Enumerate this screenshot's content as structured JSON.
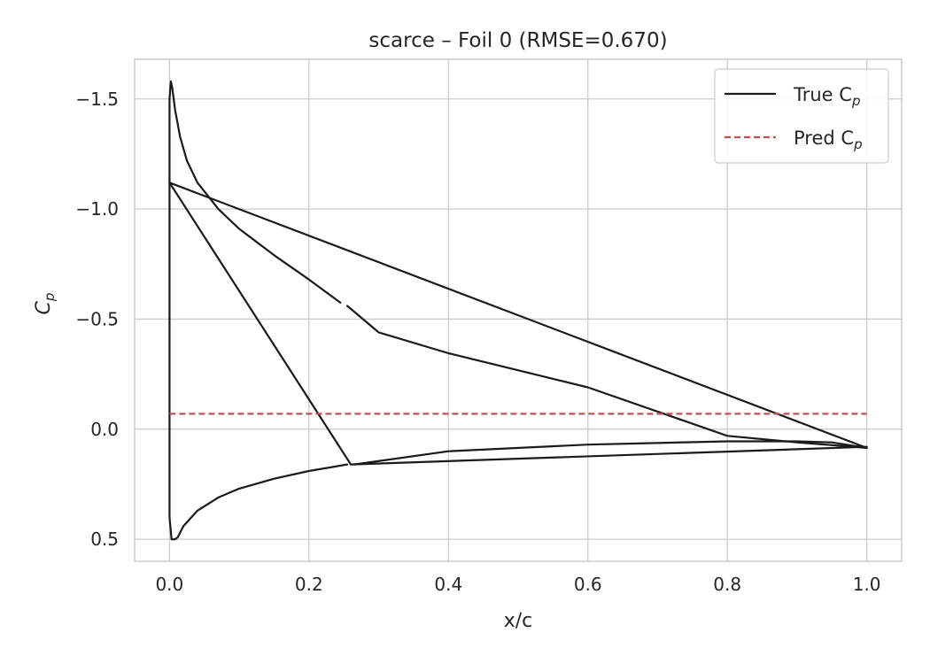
{
  "chart_data": {
    "type": "line",
    "title": "scarce – Foil 0 (RMSE=0.670)",
    "xlabel": "x/c",
    "ylabel": "C",
    "ylabel_sub": "p",
    "xlim": [
      -0.05,
      1.05
    ],
    "ylim": [
      0.6,
      -1.68
    ],
    "y_inverted": true,
    "grid": true,
    "legend_position": "top-right",
    "x_ticks": [
      0.0,
      0.2,
      0.4,
      0.6,
      0.8,
      1.0
    ],
    "x_tick_labels": [
      "0.0",
      "0.2",
      "0.4",
      "0.6",
      "0.8",
      "1.0"
    ],
    "y_ticks": [
      -1.5,
      -1.0,
      -0.5,
      0.0,
      0.5
    ],
    "y_tick_labels": [
      "−1.5",
      "−1.0",
      "−0.5",
      "0.0",
      "0.5"
    ],
    "series": [
      {
        "name": "True C",
        "name_sub": "p",
        "color": "#1a1a1a",
        "style": "solid",
        "segments": [
          {
            "x": [
              1.0,
              0.9,
              0.8,
              0.6,
              0.4,
              0.3,
              0.255
            ],
            "y": [
              0.085,
              0.06,
              0.03,
              -0.19,
              -0.345,
              -0.44,
              -0.56
            ]
          },
          {
            "x": [
              0.245,
              0.2,
              0.15,
              0.1,
              0.07,
              0.04,
              0.025,
              0.015,
              0.008,
              0.004,
              0.002,
              0.0,
              0.0,
              0.0
            ],
            "y": [
              -0.575,
              -0.68,
              -0.79,
              -0.91,
              -1.0,
              -1.12,
              -1.22,
              -1.33,
              -1.45,
              -1.55,
              -1.58,
              -1.5,
              -1.0,
              -0.5
            ]
          },
          {
            "x": [
              0.0,
              0.0,
              0.0,
              0.003,
              0.008,
              0.012,
              0.02,
              0.04,
              0.07,
              0.1,
              0.15,
              0.2,
              0.255
            ],
            "y": [
              -0.5,
              0.0,
              0.4,
              0.5,
              0.5,
              0.49,
              0.44,
              0.37,
              0.31,
              0.27,
              0.225,
              0.19,
              0.16
            ]
          },
          {
            "x": [
              0.265,
              0.4,
              0.6,
              0.8,
              0.9,
              0.95,
              1.0
            ],
            "y": [
              0.16,
              0.1,
              0.07,
              0.055,
              0.055,
              0.06,
              0.085
            ]
          },
          {
            "x": [
              1.0,
              0.26
            ],
            "y": [
              0.08,
              0.16
            ]
          },
          {
            "x": [
              0.26,
              0.0
            ],
            "y": [
              0.16,
              -1.12
            ]
          },
          {
            "x": [
              0.0,
              1.0
            ],
            "y": [
              -1.12,
              0.085
            ]
          }
        ]
      },
      {
        "name": "Pred C",
        "name_sub": "p",
        "color": "#c44e52",
        "style": "dashed",
        "segments": [
          {
            "x": [
              0.0,
              1.0
            ],
            "y": [
              -0.07,
              -0.07
            ]
          }
        ]
      }
    ]
  }
}
